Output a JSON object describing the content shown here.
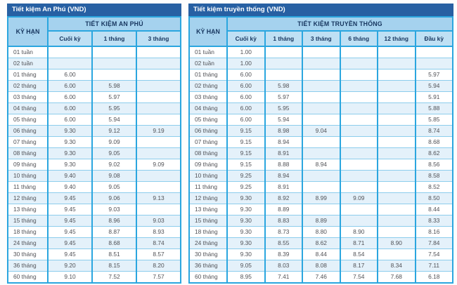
{
  "colors": {
    "title_bar": "#2760a3",
    "header_bg": "#a5d2ee",
    "subheader_bg": "#bfe0f4",
    "header_text": "#17365f",
    "border_strong": "#2ba6df",
    "border_light": "#8ccdec",
    "row_alt": "#e4f1fa",
    "body_text": "#515257",
    "title_text": "#ffffff"
  },
  "tables": [
    {
      "id": "an-phu",
      "title": "Tiết kiệm An Phú (VND)",
      "group_header": "TIẾT KIỆM AN PHÚ",
      "row_header": "KỲ HẠN",
      "columns": [
        "Cuối kỳ",
        "1 tháng",
        "3 tháng"
      ],
      "rows": [
        {
          "label": "01 tuần",
          "values": [
            "",
            "",
            ""
          ]
        },
        {
          "label": "02 tuần",
          "values": [
            "",
            "",
            ""
          ]
        },
        {
          "label": "01 tháng",
          "values": [
            "6.00",
            "",
            ""
          ]
        },
        {
          "label": "02 tháng",
          "values": [
            "6.00",
            "5.98",
            ""
          ]
        },
        {
          "label": "03 tháng",
          "values": [
            "6.00",
            "5.97",
            ""
          ]
        },
        {
          "label": "04 tháng",
          "values": [
            "6.00",
            "5.95",
            ""
          ]
        },
        {
          "label": "05 tháng",
          "values": [
            "6.00",
            "5.94",
            ""
          ]
        },
        {
          "label": "06 tháng",
          "values": [
            "9.30",
            "9.12",
            "9.19"
          ]
        },
        {
          "label": "07 tháng",
          "values": [
            "9.30",
            "9.09",
            ""
          ]
        },
        {
          "label": "08 tháng",
          "values": [
            "9.30",
            "9.05",
            ""
          ]
        },
        {
          "label": "09 tháng",
          "values": [
            "9.30",
            "9.02",
            "9.09"
          ]
        },
        {
          "label": "10 tháng",
          "values": [
            "9.40",
            "9.08",
            ""
          ]
        },
        {
          "label": "11 tháng",
          "values": [
            "9.40",
            "9.05",
            ""
          ]
        },
        {
          "label": "12 tháng",
          "values": [
            "9.45",
            "9.06",
            "9.13"
          ]
        },
        {
          "label": "13 tháng",
          "values": [
            "9.45",
            "9.03",
            ""
          ]
        },
        {
          "label": "15 tháng",
          "values": [
            "9.45",
            "8.96",
            "9.03"
          ]
        },
        {
          "label": "18 tháng",
          "values": [
            "9.45",
            "8.87",
            "8.93"
          ]
        },
        {
          "label": "24 tháng",
          "values": [
            "9.45",
            "8.68",
            "8.74"
          ]
        },
        {
          "label": "30 tháng",
          "values": [
            "9.45",
            "8.51",
            "8.57"
          ]
        },
        {
          "label": "36 tháng",
          "values": [
            "9.20",
            "8.15",
            "8.20"
          ]
        },
        {
          "label": "60 tháng",
          "values": [
            "9.10",
            "7.52",
            "7.57"
          ]
        }
      ]
    },
    {
      "id": "truyen-thong",
      "title": "Tiết kiệm truyền thống (VND)",
      "group_header": "TIẾT KIỆM TRUYỀN THỐNG",
      "row_header": "KỲ HẠN",
      "columns": [
        "Cuối kỳ",
        "1 tháng",
        "3 tháng",
        "6 tháng",
        "12 tháng",
        "Đầu kỳ"
      ],
      "rows": [
        {
          "label": "01 tuần",
          "values": [
            "1.00",
            "",
            "",
            "",
            "",
            ""
          ]
        },
        {
          "label": "02 tuần",
          "values": [
            "1.00",
            "",
            "",
            "",
            "",
            ""
          ]
        },
        {
          "label": "01 tháng",
          "values": [
            "6.00",
            "",
            "",
            "",
            "",
            "5.97"
          ]
        },
        {
          "label": "02 tháng",
          "values": [
            "6.00",
            "5.98",
            "",
            "",
            "",
            "5.94"
          ]
        },
        {
          "label": "03 tháng",
          "values": [
            "6.00",
            "5.97",
            "",
            "",
            "",
            "5.91"
          ]
        },
        {
          "label": "04 tháng",
          "values": [
            "6.00",
            "5.95",
            "",
            "",
            "",
            "5.88"
          ]
        },
        {
          "label": "05 tháng",
          "values": [
            "6.00",
            "5.94",
            "",
            "",
            "",
            "5.85"
          ]
        },
        {
          "label": "06 tháng",
          "values": [
            "9.15",
            "8.98",
            "9.04",
            "",
            "",
            "8.74"
          ]
        },
        {
          "label": "07 tháng",
          "values": [
            "9.15",
            "8.94",
            "",
            "",
            "",
            "8.68"
          ]
        },
        {
          "label": "08 tháng",
          "values": [
            "9.15",
            "8.91",
            "",
            "",
            "",
            "8.62"
          ]
        },
        {
          "label": "09 tháng",
          "values": [
            "9.15",
            "8.88",
            "8.94",
            "",
            "",
            "8.56"
          ]
        },
        {
          "label": "10 tháng",
          "values": [
            "9.25",
            "8.94",
            "",
            "",
            "",
            "8.58"
          ]
        },
        {
          "label": "11 tháng",
          "values": [
            "9.25",
            "8.91",
            "",
            "",
            "",
            "8.52"
          ]
        },
        {
          "label": "12 tháng",
          "values": [
            "9.30",
            "8.92",
            "8.99",
            "9.09",
            "",
            "8.50"
          ]
        },
        {
          "label": "13 tháng",
          "values": [
            "9.30",
            "8.89",
            "",
            "",
            "",
            "8.44"
          ]
        },
        {
          "label": "15 tháng",
          "values": [
            "9.30",
            "8.83",
            "8.89",
            "",
            "",
            "8.33"
          ]
        },
        {
          "label": "18 tháng",
          "values": [
            "9.30",
            "8.73",
            "8.80",
            "8.90",
            "",
            "8.16"
          ]
        },
        {
          "label": "24 tháng",
          "values": [
            "9.30",
            "8.55",
            "8.62",
            "8.71",
            "8.90",
            "7.84"
          ]
        },
        {
          "label": "30 tháng",
          "values": [
            "9.30",
            "8.39",
            "8.44",
            "8.54",
            "",
            "7.54"
          ]
        },
        {
          "label": "36 tháng",
          "values": [
            "9.05",
            "8.03",
            "8.08",
            "8.17",
            "8.34",
            "7.11"
          ]
        },
        {
          "label": "60 tháng",
          "values": [
            "8.95",
            "7.41",
            "7.46",
            "7.54",
            "7.68",
            "6.18"
          ]
        }
      ]
    }
  ]
}
